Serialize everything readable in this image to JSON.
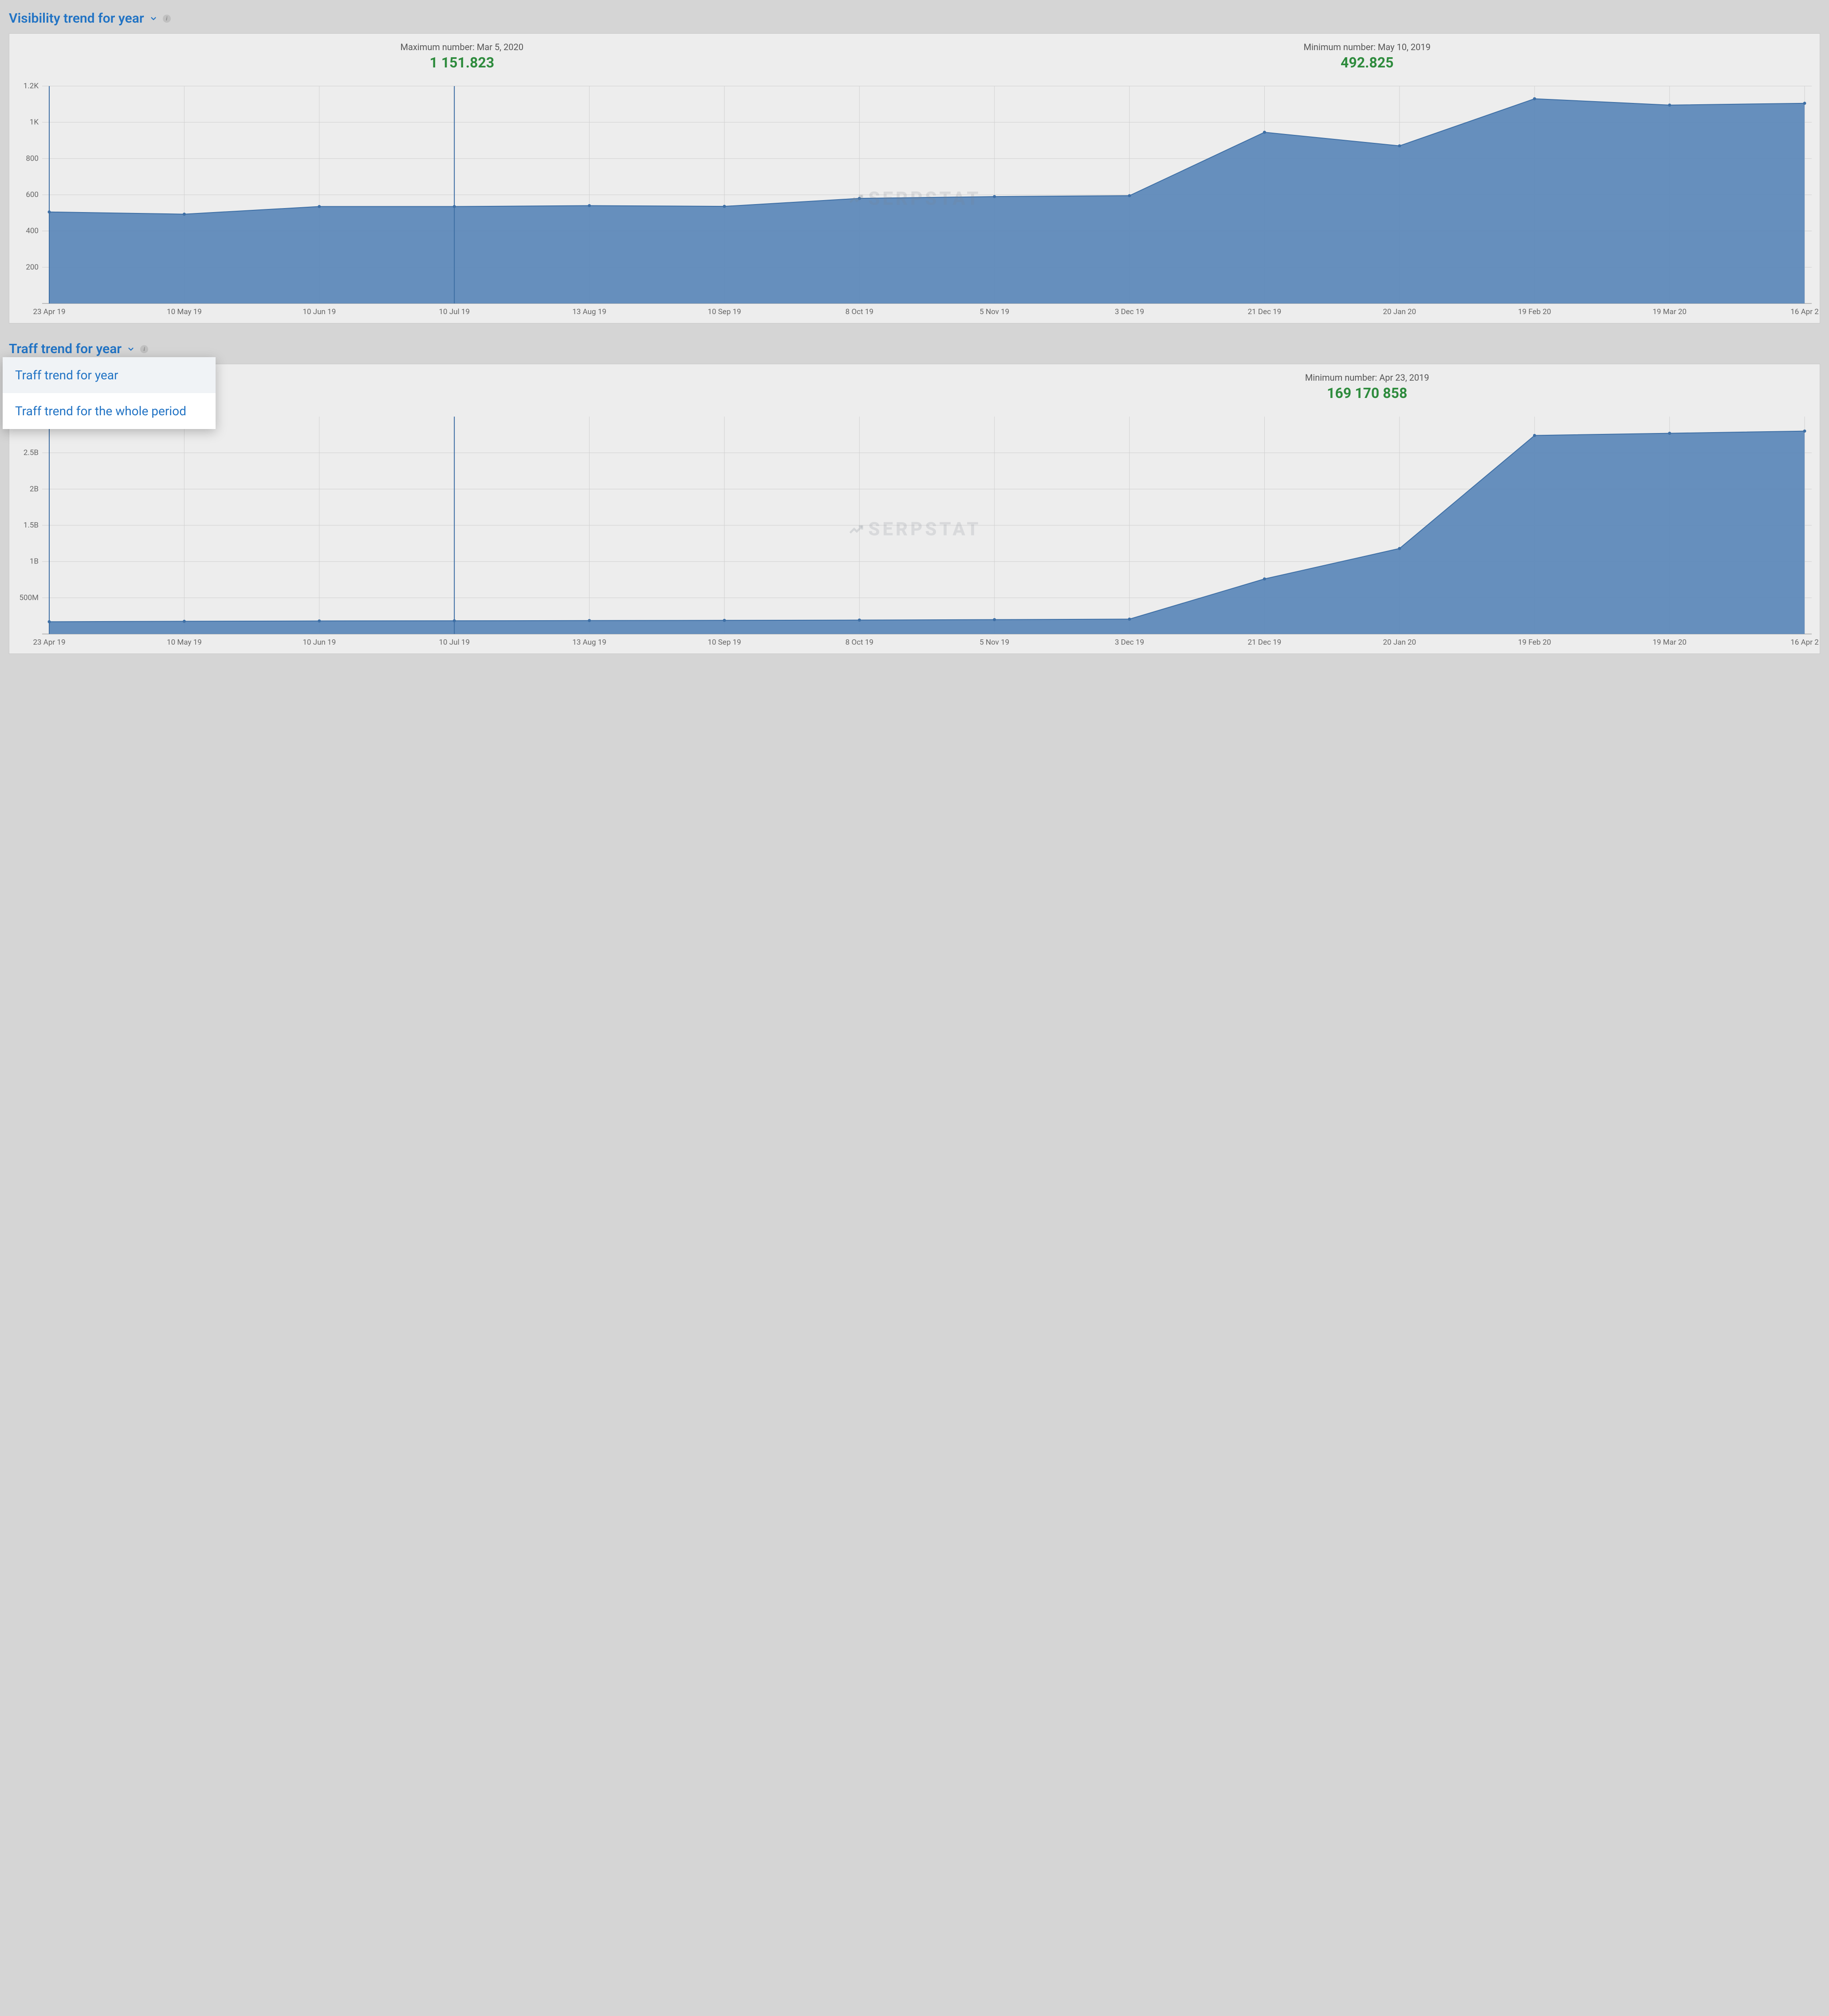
{
  "panels": [
    {
      "id": "visibility",
      "title": "Visibility trend for year",
      "dropdown_open": false,
      "stats": {
        "max_label": "Maximum number: Mar 5, 2020",
        "max_value": "1 151.823",
        "min_label": "Minimum number: May 10, 2019",
        "min_value": "492.825"
      },
      "chart": {
        "type": "area",
        "watermark": "SERPSTAT",
        "x_labels": [
          "23 Apr 19",
          "10 May 19",
          "10 Jun 19",
          "10 Jul 19",
          "13 Aug 19",
          "10 Sep 19",
          "8 Oct 19",
          "5 Nov 19",
          "3 Dec 19",
          "21 Dec 19",
          "20 Jan 20",
          "19 Feb 20",
          "19 Mar 20",
          "16 Apr 2"
        ],
        "y_ticks": [
          200,
          400,
          600,
          800,
          1000,
          1200
        ],
        "y_tick_labels": [
          "200",
          "400",
          "600",
          "800",
          "1K",
          "1.2K"
        ],
        "ylim": [
          0,
          1200
        ],
        "values": [
          505,
          493,
          535,
          535,
          540,
          536,
          580,
          590,
          595,
          945,
          870,
          1130,
          1095,
          1105
        ],
        "vlines_at_idx": [
          0,
          3
        ],
        "colors": {
          "fill": "#5a87b8",
          "line": "#3e6fa5",
          "grid": "#d0d0d0",
          "bg": "#ededed",
          "marker": "#3e6fa5"
        },
        "line_width": 2,
        "marker_radius": 3.5
      }
    },
    {
      "id": "traff",
      "title": "Traff trend for year",
      "dropdown_open": true,
      "dropdown_items": [
        {
          "label": "Traff trend for year",
          "selected": true
        },
        {
          "label": "Traff trend for the whole period",
          "selected": false
        }
      ],
      "stats": {
        "max_label": "",
        "max_value": "",
        "min_label": "Minimum number: Apr 23, 2019",
        "min_value": "169 170 858"
      },
      "chart": {
        "type": "area",
        "watermark": "SERPSTAT",
        "x_labels": [
          "23 Apr 19",
          "10 May 19",
          "10 Jun 19",
          "10 Jul 19",
          "13 Aug 19",
          "10 Sep 19",
          "8 Oct 19",
          "5 Nov 19",
          "3 Dec 19",
          "21 Dec 19",
          "20 Jan 20",
          "19 Feb 20",
          "19 Mar 20",
          "16 Apr 2"
        ],
        "y_ticks": [
          500000000,
          1000000000,
          1500000000,
          2000000000,
          2500000000
        ],
        "y_tick_labels": [
          "500M",
          "1B",
          "1.5B",
          "2B",
          "2.5B"
        ],
        "ylim": [
          0,
          3000000000
        ],
        "values": [
          169170858,
          175000000,
          180000000,
          182000000,
          185000000,
          188000000,
          192000000,
          198000000,
          205000000,
          760000000,
          1180000000,
          2740000000,
          2770000000,
          2800000000
        ],
        "vlines_at_idx": [
          0,
          3
        ],
        "colors": {
          "fill": "#5a87b8",
          "line": "#3e6fa5",
          "grid": "#d0d0d0",
          "bg": "#ededed",
          "marker": "#3e6fa5"
        },
        "line_width": 2,
        "marker_radius": 3.5
      }
    }
  ]
}
